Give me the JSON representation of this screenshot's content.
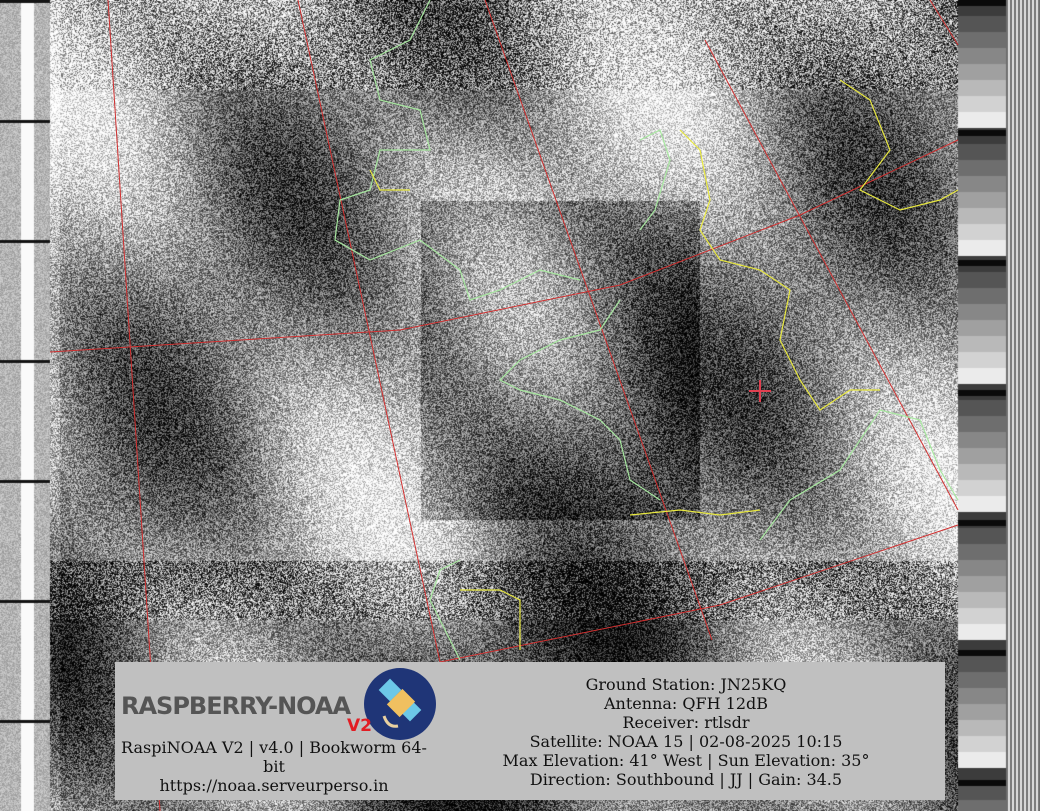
{
  "image": {
    "type": "NOAA APT satellite image",
    "colors": {
      "graticule": "#d03030",
      "coastline": "#a8e8a0",
      "borders": "#e8e840",
      "panel": "#c0c0c0",
      "logo_circle": "#1f3577",
      "logo_v2": "#e21d24"
    }
  },
  "logo": {
    "text": "RASPBERRY-NOAA",
    "badge": "V2"
  },
  "left_info": {
    "line1": "RaspiNOAA V2 | v4.0 | Bookworm 64-bit",
    "url": "https://noaa.serveurperso.in"
  },
  "right_info": {
    "ground_station": "Ground Station: JN25KQ",
    "antenna": "Antenna: QFH 12dB",
    "receiver": "Receiver: rtlsdr",
    "satellite": "Satellite: NOAA 15 | 02-08-2025 10:15",
    "elevation": "Max Elevation: 41° West | Sun Elevation: 35°",
    "direction": "Direction: Southbound | JJ | Gain: 34.5"
  }
}
